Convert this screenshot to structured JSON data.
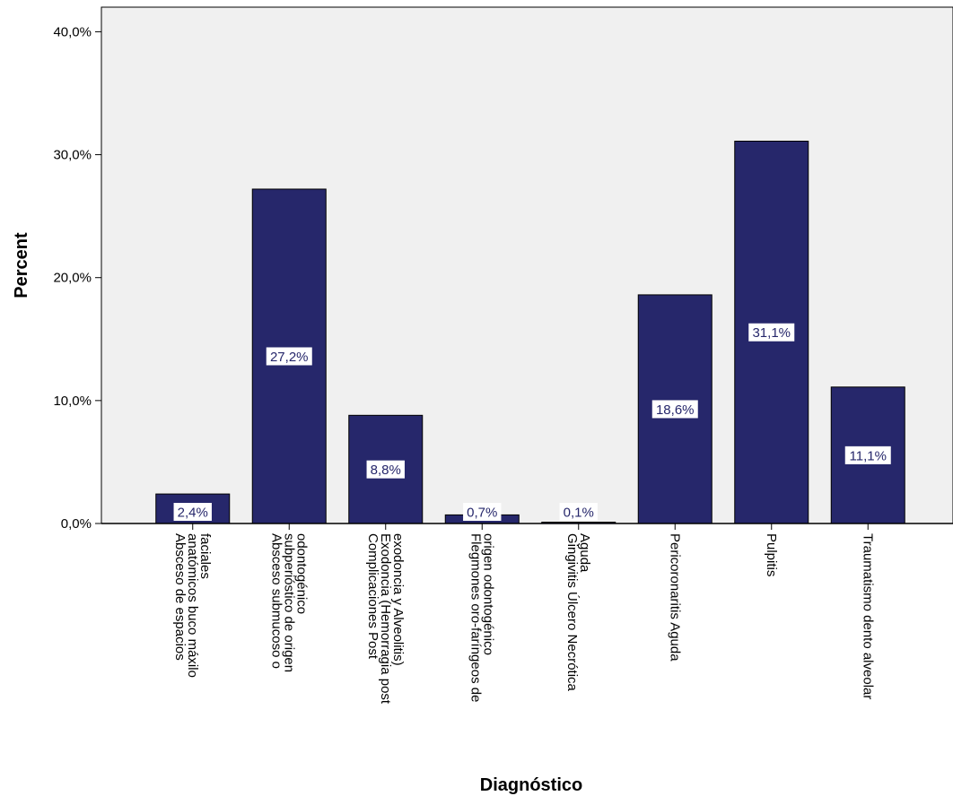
{
  "chart_data": {
    "type": "bar",
    "categories": [
      [
        "Absceso de espacios",
        "anatómicos buco máxilo",
        "faciales"
      ],
      [
        "Absceso submucoso o",
        "subperióstico de origen",
        "odontogénico"
      ],
      [
        "Complicaciones Post",
        "Exodoncia (Hemorragia post",
        "exodoncia y Alveolitis)"
      ],
      [
        "Flegmones oro-faríngeos de",
        "origen odontogénico"
      ],
      [
        "Gingivitis Úlcero Necrótica",
        "Aguda"
      ],
      [
        "Pericoronaritis Aguda"
      ],
      [
        "Pulpitis"
      ],
      [
        "Traumatismo dento alveolar"
      ]
    ],
    "values": [
      2.4,
      27.2,
      8.8,
      0.7,
      0.1,
      18.6,
      31.1,
      11.1
    ],
    "data_labels": [
      "2,4%",
      "27,2%",
      "8,8%",
      "0,7%",
      "0,1%",
      "18,6%",
      "31,1%",
      "11,1%"
    ],
    "xlabel": "Diagnóstico",
    "ylabel": "Percent",
    "ylim": [
      0,
      42
    ],
    "yticks": [
      0,
      10,
      20,
      30,
      40
    ],
    "ytick_labels": [
      "0,0%",
      "10,0%",
      "20,0%",
      "30,0%",
      "40,0%"
    ],
    "grid": false,
    "colors": {
      "bar_fill": "#26276b",
      "bar_stroke": "#000000",
      "plot_background": "#f0f0f0",
      "label_text": "#26276b"
    }
  }
}
